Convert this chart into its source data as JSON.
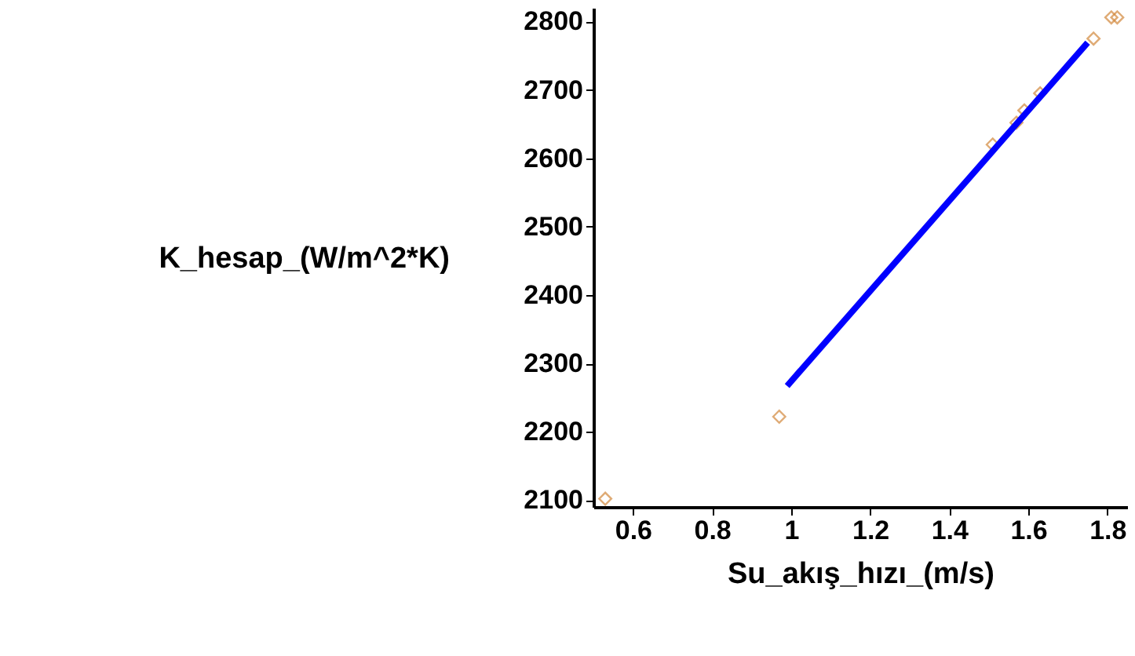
{
  "chart_data": {
    "type": "scatter",
    "xlabel": "Su_akış_hızı_(m/s)",
    "ylabel": "K_hesap_(W/m^2*K)",
    "xlim": [
      0.5,
      1.85
    ],
    "ylim": [
      2090,
      2820
    ],
    "xticks": [
      0.6,
      0.8,
      1,
      1.2,
      1.4,
      1.6,
      1.8
    ],
    "yticks": [
      2100,
      2200,
      2300,
      2400,
      2500,
      2600,
      2700,
      2800
    ],
    "grid": false,
    "series": [
      {
        "type": "scatter",
        "color": "#d2883c",
        "marker": "diamond",
        "x": [
          0.53,
          0.97,
          1.51,
          1.57,
          1.59,
          1.63,
          1.765,
          1.81,
          1.825
        ],
        "values": [
          2102,
          2222,
          2620,
          2652,
          2670,
          2695,
          2775,
          2806,
          2806
        ]
      },
      {
        "type": "line",
        "color": "#0000ff",
        "x": [
          0.99,
          1.75
        ],
        "values": [
          2267,
          2769
        ]
      }
    ]
  }
}
